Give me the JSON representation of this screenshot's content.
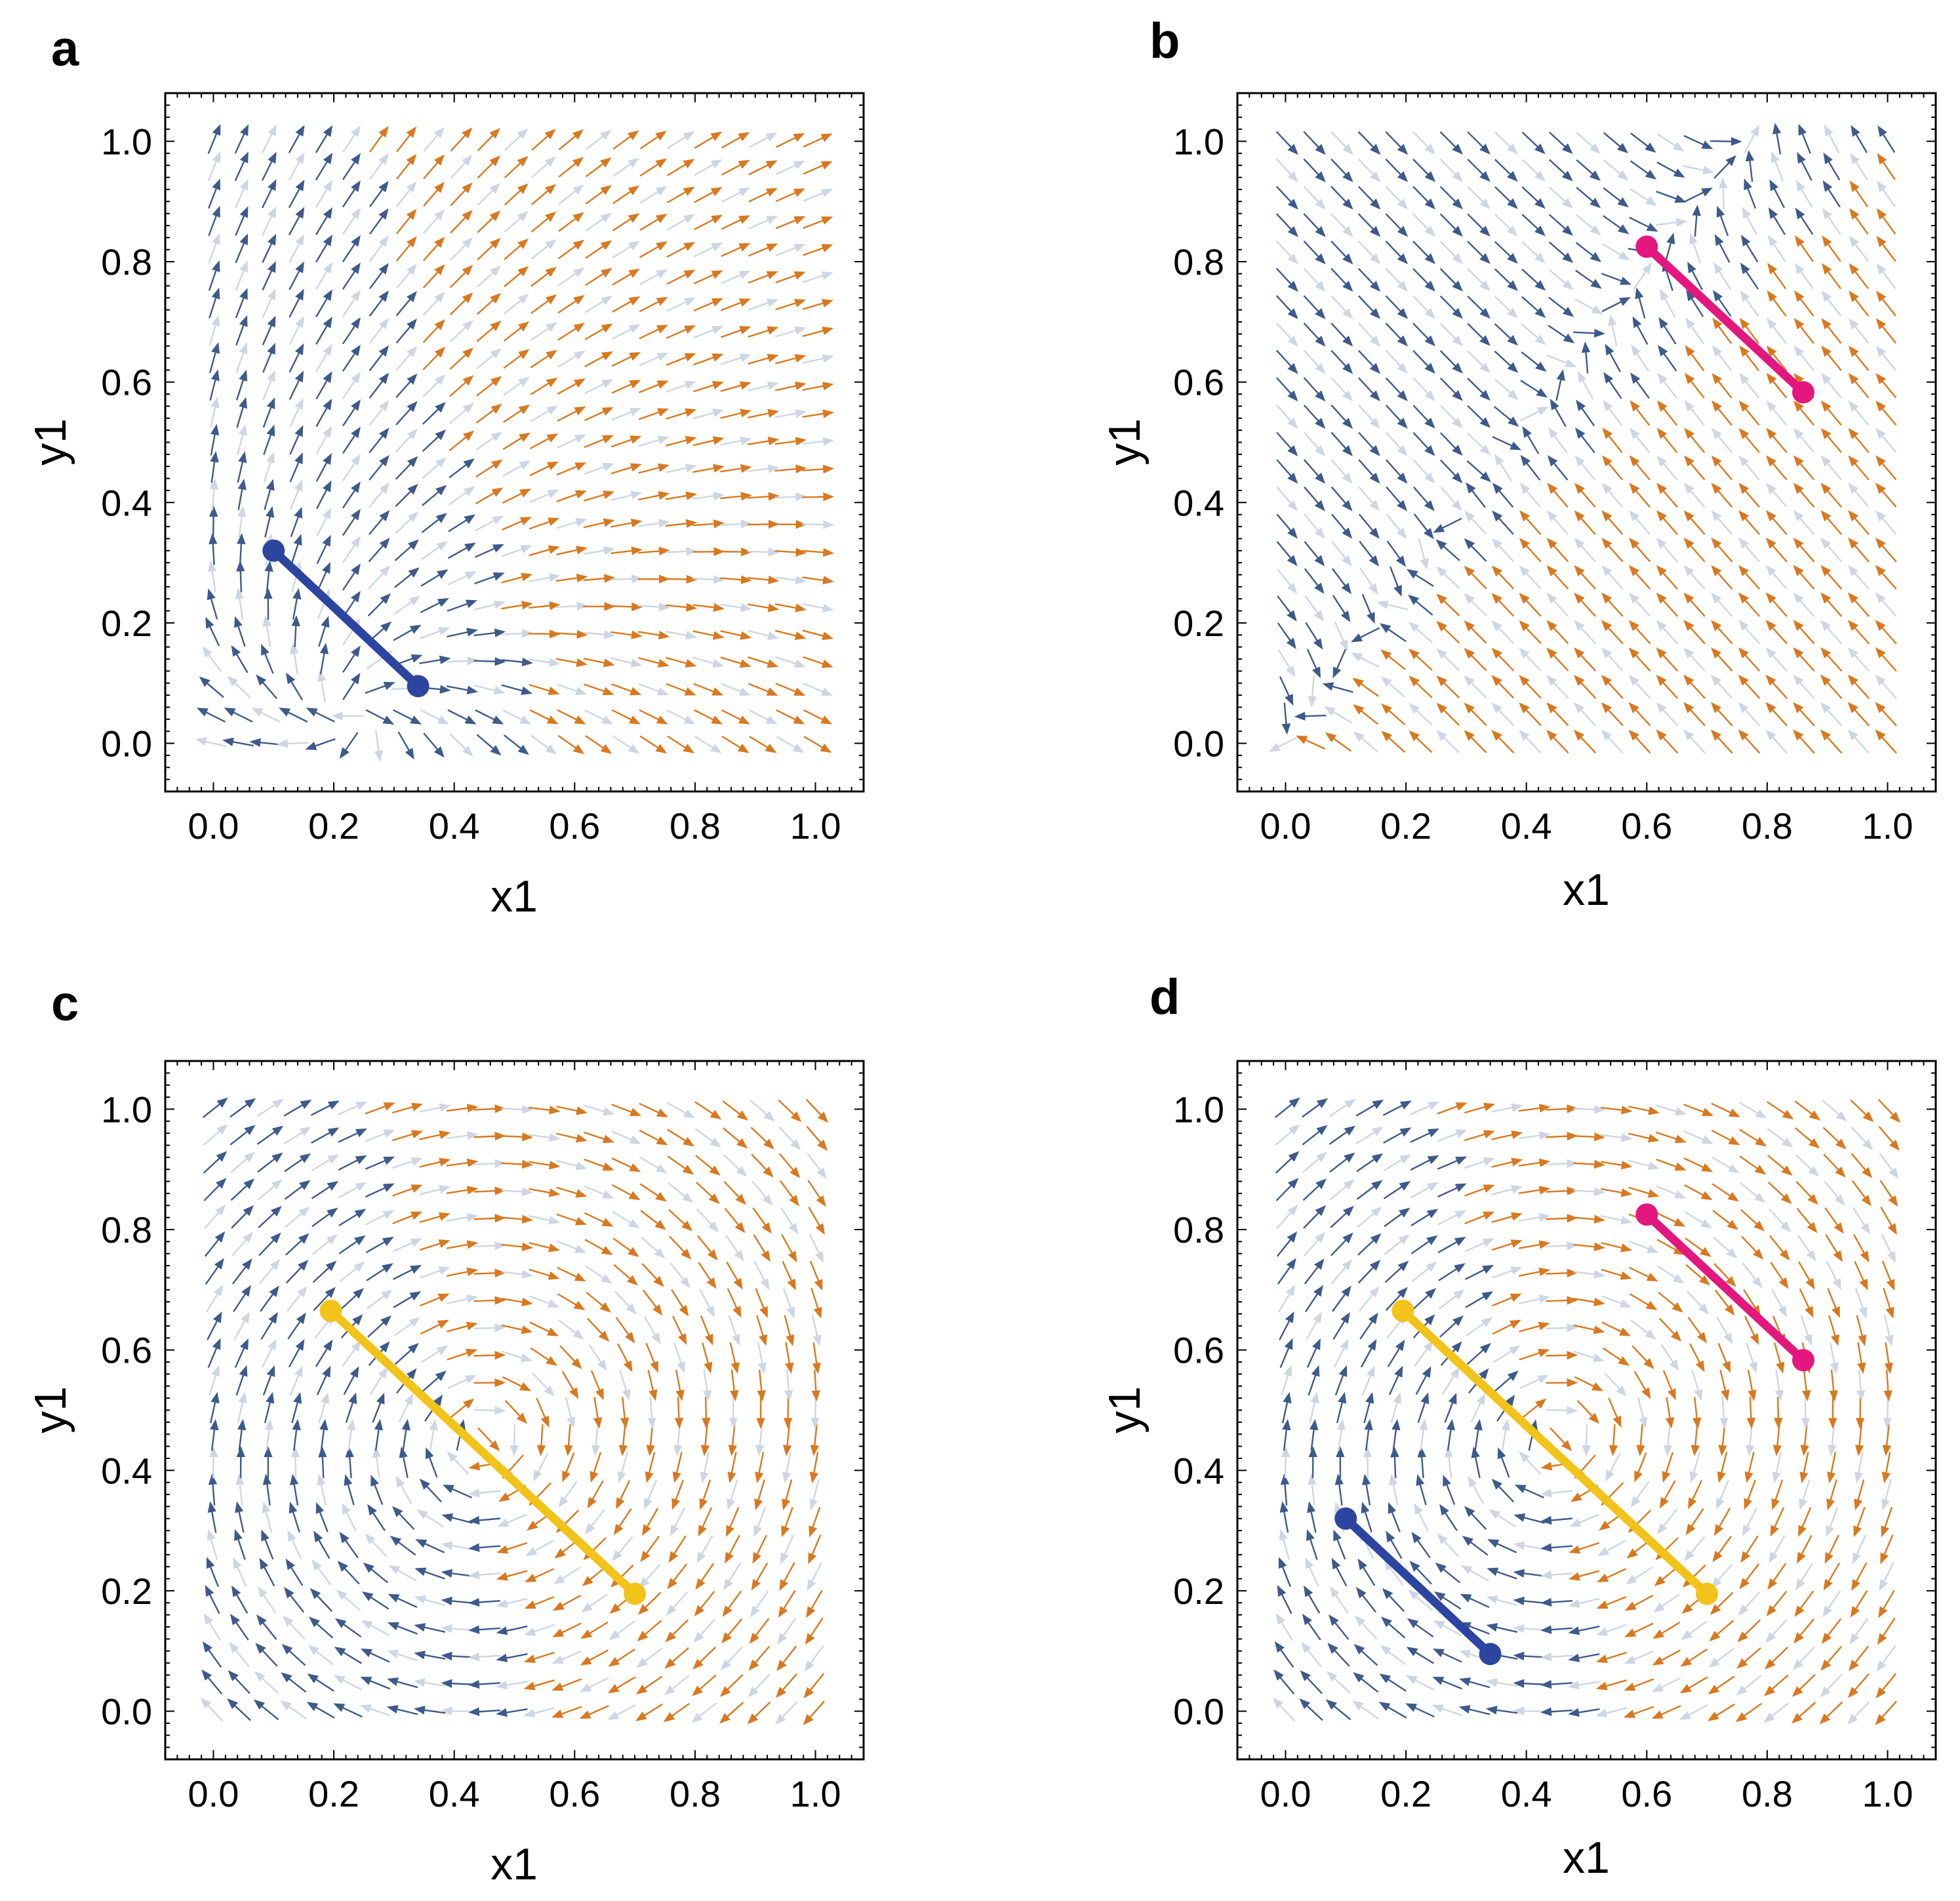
{
  "colors": {
    "flow_blue": "#3d5a8a",
    "flow_orange": "#d9781f",
    "flow_light": "#cdd6e2",
    "segment_blue": "#2c45a0",
    "segment_magenta": "#e3177e",
    "segment_yellow": "#f2c318"
  },
  "chart_data": [
    {
      "type": "scatter",
      "panel": "a",
      "title": "a",
      "xlabel": "x1",
      "ylabel": "y1",
      "xlim": [
        -0.08,
        1.08
      ],
      "ylim": [
        -0.08,
        1.08
      ],
      "xticks": [
        "0.0",
        "0.2",
        "0.4",
        "0.6",
        "0.8",
        "1.0"
      ],
      "yticks": [
        "0.0",
        "0.2",
        "0.4",
        "0.6",
        "0.8",
        "1.0"
      ],
      "background": "stream plot (phase-portrait arrows)",
      "series": [
        {
          "name": "blue",
          "color": "#2c45a0",
          "x": [
            0.1,
            0.34
          ],
          "y": [
            0.32,
            0.095
          ]
        }
      ]
    },
    {
      "type": "scatter",
      "panel": "b",
      "title": "b",
      "xlabel": "x1",
      "ylabel": "y1",
      "xlim": [
        -0.08,
        1.08
      ],
      "ylim": [
        -0.08,
        1.08
      ],
      "xticks": [
        "0.0",
        "0.2",
        "0.4",
        "0.6",
        "0.8",
        "1.0"
      ],
      "yticks": [
        "0.0",
        "0.2",
        "0.4",
        "0.6",
        "0.8",
        "1.0"
      ],
      "background": "stream plot (phase-portrait arrows)",
      "series": [
        {
          "name": "magenta",
          "color": "#e3177e",
          "x": [
            0.6,
            0.86
          ],
          "y": [
            0.825,
            0.583
          ]
        }
      ]
    },
    {
      "type": "scatter",
      "panel": "c",
      "title": "c",
      "xlabel": "x1",
      "ylabel": "y1",
      "xlim": [
        -0.08,
        1.08
      ],
      "ylim": [
        -0.08,
        1.08
      ],
      "xticks": [
        "0.0",
        "0.2",
        "0.4",
        "0.6",
        "0.8",
        "1.0"
      ],
      "yticks": [
        "0.0",
        "0.2",
        "0.4",
        "0.6",
        "0.8",
        "1.0"
      ],
      "background": "stream plot (phase-portrait arrows)",
      "series": [
        {
          "name": "yellow",
          "color": "#f2c318",
          "x": [
            0.195,
            0.7
          ],
          "y": [
            0.665,
            0.195
          ]
        }
      ]
    },
    {
      "type": "scatter",
      "panel": "d",
      "title": "d",
      "xlabel": "x1",
      "ylabel": "y1",
      "xlim": [
        -0.08,
        1.08
      ],
      "ylim": [
        -0.08,
        1.08
      ],
      "xticks": [
        "0.0",
        "0.2",
        "0.4",
        "0.6",
        "0.8",
        "1.0"
      ],
      "yticks": [
        "0.0",
        "0.2",
        "0.4",
        "0.6",
        "0.8",
        "1.0"
      ],
      "background": "stream plot (phase-portrait arrows)",
      "series": [
        {
          "name": "magenta",
          "color": "#e3177e",
          "x": [
            0.6,
            0.86
          ],
          "y": [
            0.825,
            0.583
          ]
        },
        {
          "name": "yellow",
          "color": "#f2c318",
          "x": [
            0.195,
            0.7
          ],
          "y": [
            0.665,
            0.195
          ]
        },
        {
          "name": "blue",
          "color": "#2c45a0",
          "x": [
            0.1,
            0.34
          ],
          "y": [
            0.32,
            0.095
          ]
        }
      ]
    }
  ]
}
